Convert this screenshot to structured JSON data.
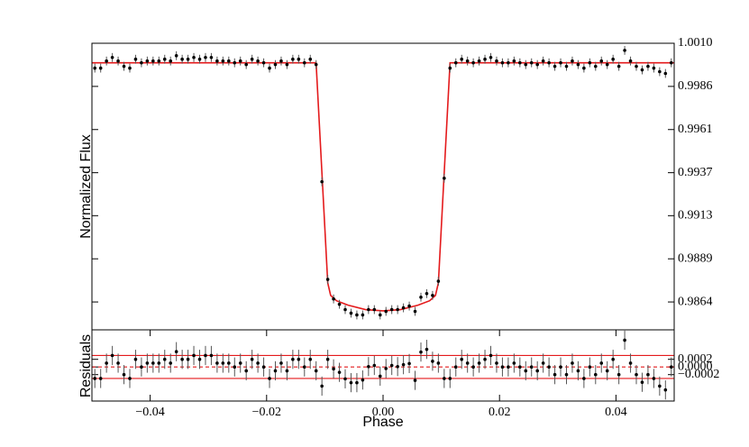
{
  "chart_data": [
    {
      "type": "scatter",
      "ylabel": "Normalized Flux",
      "color": "#000000",
      "error": 0.00025,
      "x": [
        -0.0495,
        -0.0485,
        -0.0475,
        -0.0465,
        -0.0455,
        -0.0445,
        -0.0435,
        -0.0425,
        -0.0415,
        -0.0405,
        -0.0395,
        -0.0385,
        -0.0375,
        -0.0365,
        -0.0355,
        -0.0345,
        -0.0335,
        -0.0325,
        -0.0315,
        -0.0305,
        -0.0295,
        -0.0285,
        -0.0275,
        -0.0265,
        -0.0255,
        -0.0245,
        -0.0235,
        -0.0225,
        -0.0215,
        -0.0205,
        -0.0195,
        -0.0185,
        -0.0175,
        -0.0165,
        -0.0155,
        -0.0145,
        -0.0135,
        -0.0125,
        -0.0115,
        -0.0105,
        -0.0095,
        -0.0085,
        -0.0075,
        -0.0065,
        -0.0055,
        -0.0045,
        -0.0035,
        -0.0025,
        -0.0015,
        -0.0005,
        0.0005,
        0.0015,
        0.0025,
        0.0035,
        0.0045,
        0.0055,
        0.0065,
        0.0075,
        0.0085,
        0.0095,
        0.0105,
        0.0115,
        0.0125,
        0.0135,
        0.0145,
        0.0155,
        0.0165,
        0.0175,
        0.0185,
        0.0195,
        0.0205,
        0.0215,
        0.0225,
        0.0235,
        0.0245,
        0.0255,
        0.0265,
        0.0275,
        0.0285,
        0.0295,
        0.0305,
        0.0315,
        0.0325,
        0.0335,
        0.0345,
        0.0355,
        0.0365,
        0.0375,
        0.0385,
        0.0395,
        0.0405,
        0.0415,
        0.0425,
        0.0435,
        0.0445,
        0.0455,
        0.0465,
        0.0475,
        0.0485,
        0.0495
      ],
      "values": [
        0.9996,
        0.9996,
        1.0,
        1.0002,
        1.0,
        0.9997,
        0.9996,
        1.0001,
        0.9999,
        1.0,
        1.0,
        1.0,
        1.0001,
        1.0,
        1.0003,
        1.0001,
        1.0001,
        1.0002,
        1.0001,
        1.0002,
        1.0002,
        1.0,
        1.0,
        1.0,
        0.9999,
        1.0,
        0.9998,
        1.0001,
        1.0,
        0.9999,
        0.9996,
        0.9998,
        1.0,
        0.9998,
        1.0001,
        1.0001,
        0.9999,
        1.0001,
        0.9998,
        0.9932,
        0.9877,
        0.9866,
        0.9863,
        0.986,
        0.9858,
        0.9857,
        0.9857,
        0.986,
        0.986,
        0.9857,
        0.9859,
        0.986,
        0.986,
        0.9861,
        0.9862,
        0.9859,
        0.9867,
        0.9869,
        0.9868,
        0.9876,
        0.9934,
        0.9996,
        0.9999,
        1.0001,
        1.0,
        0.9999,
        1.0,
        1.0001,
        1.0002,
        1.0,
        0.9999,
        0.9999,
        1.0,
        0.9999,
        0.9998,
        0.9999,
        0.9998,
        1.0,
        0.9999,
        0.9997,
        0.9999,
        0.9997,
        1.0,
        0.9998,
        0.9996,
        0.9999,
        0.9997,
        1.0,
        0.9998,
        1.0001,
        0.9997,
        1.0006,
        1.0,
        0.9997,
        0.9995,
        0.9997,
        0.9996,
        0.9994,
        0.9993,
        0.9999
      ],
      "model": {
        "color": "#e41a1c",
        "x": [
          -0.05,
          -0.0115,
          -0.0095,
          -0.009,
          -0.008,
          -0.006,
          -0.003,
          0,
          0.003,
          0.006,
          0.008,
          0.009,
          0.0095,
          0.0115,
          0.05
        ],
        "values": [
          0.9999,
          0.9999,
          0.9875,
          0.9868,
          0.9865,
          0.98625,
          0.986,
          0.98593,
          0.986,
          0.98625,
          0.9865,
          0.9868,
          0.9875,
          0.9999,
          0.9999
        ]
      },
      "xlim": [
        -0.05,
        0.05
      ],
      "ylim": [
        0.98486,
        1.001
      ],
      "yticks": [
        {
          "value": 1.001,
          "label": "1.0010"
        },
        {
          "value": 0.99857,
          "label": "0.9986"
        },
        {
          "value": 0.99614,
          "label": "0.9961"
        },
        {
          "value": 0.99371,
          "label": "0.9937"
        },
        {
          "value": 0.99129,
          "label": "0.9913"
        },
        {
          "value": 0.98886,
          "label": "0.9889"
        },
        {
          "value": 0.98643,
          "label": "0.9864"
        }
      ]
    },
    {
      "type": "scatter",
      "ylabel": "Residuals",
      "xlabel": "Phase",
      "color": "#000000",
      "error": 0.00025,
      "x": [
        -0.0495,
        -0.0485,
        -0.0475,
        -0.0465,
        -0.0455,
        -0.0445,
        -0.0435,
        -0.0425,
        -0.0415,
        -0.0405,
        -0.0395,
        -0.0385,
        -0.0375,
        -0.0365,
        -0.0355,
        -0.0345,
        -0.0335,
        -0.0325,
        -0.0315,
        -0.0305,
        -0.0295,
        -0.0285,
        -0.0275,
        -0.0265,
        -0.0255,
        -0.0245,
        -0.0235,
        -0.0225,
        -0.0215,
        -0.0205,
        -0.0195,
        -0.0185,
        -0.0175,
        -0.0165,
        -0.0155,
        -0.0145,
        -0.0135,
        -0.0125,
        -0.0115,
        -0.0105,
        -0.0095,
        -0.0085,
        -0.0075,
        -0.0065,
        -0.0055,
        -0.0045,
        -0.0035,
        -0.0025,
        -0.0015,
        -0.0005,
        0.0005,
        0.0015,
        0.0025,
        0.0035,
        0.0045,
        0.0055,
        0.0065,
        0.0075,
        0.0085,
        0.0095,
        0.0105,
        0.0115,
        0.0125,
        0.0135,
        0.0145,
        0.0155,
        0.0165,
        0.0175,
        0.0185,
        0.0195,
        0.0205,
        0.0215,
        0.0225,
        0.0235,
        0.0245,
        0.0255,
        0.0265,
        0.0275,
        0.0285,
        0.0295,
        0.0305,
        0.0315,
        0.0325,
        0.0335,
        0.0345,
        0.0355,
        0.0365,
        0.0375,
        0.0385,
        0.0395,
        0.0405,
        0.0415,
        0.0425,
        0.0435,
        0.0445,
        0.0455,
        0.0465,
        0.0475,
        0.0485,
        0.0495
      ],
      "values": [
        -0.0003,
        -0.0003,
        0.0001,
        0.0003,
        0.0001,
        -0.0002,
        -0.0003,
        0.0002,
        0,
        0.0001,
        0.0001,
        0.0001,
        0.0002,
        0.0001,
        0.0004,
        0.0002,
        0.0002,
        0.0003,
        0.0002,
        0.0003,
        0.0003,
        0.0001,
        0.0001,
        0.0001,
        0,
        0.0001,
        -0.0001,
        0.0002,
        0.0001,
        0,
        -0.0003,
        -0.0001,
        0.0001,
        -0.0001,
        0.0002,
        0.0002,
        0,
        0.0002,
        -0.0001,
        -0.0005,
        0.0002,
        -5e-05,
        -0.00014,
        -0.00031,
        -0.00041,
        -0.00041,
        -0.00034,
        1e-05,
        4e-05,
        -0.00024,
        -4e-05,
        4e-05,
        1e-05,
        6e-05,
        9e-05,
        -0.00035,
        0.00039,
        0.00046,
        0.00015,
        0.0001,
        -0.0003,
        -0.0003,
        0,
        0.0002,
        0.0001,
        0,
        0.0001,
        0.0002,
        0.0003,
        0.0001,
        0,
        0,
        0.0001,
        0,
        -0.0001,
        0,
        -0.0001,
        0.0001,
        0,
        -0.0002,
        0,
        -0.0002,
        0.0001,
        -0.0001,
        -0.0003,
        0,
        -0.0002,
        0.0001,
        -0.0001,
        0.0002,
        -0.0002,
        0.0007,
        0.0001,
        -0.0002,
        -0.0004,
        -0.0002,
        -0.0003,
        -0.0005,
        -0.0006,
        0
      ],
      "hlines": [
        {
          "value": 0.0003,
          "style": "solid"
        },
        {
          "value": 0,
          "style": "dashed"
        },
        {
          "value": -0.0003,
          "style": "solid"
        }
      ],
      "hline_color": "#e41a1c",
      "xlim": [
        -0.05,
        0.05
      ],
      "ylim": [
        -0.00089,
        0.00097
      ],
      "xticks": [
        {
          "value": -0.04,
          "label": "−0.04"
        },
        {
          "value": -0.02,
          "label": "−0.02"
        },
        {
          "value": 0,
          "label": "0.00"
        },
        {
          "value": 0.02,
          "label": "0.02"
        },
        {
          "value": 0.04,
          "label": "0.04"
        }
      ],
      "yticks": [
        {
          "value": 0.0002,
          "label": "0.0002"
        },
        {
          "value": 0,
          "label": "0.0000"
        },
        {
          "value": -0.0002,
          "label": "−0.0002"
        }
      ]
    }
  ]
}
